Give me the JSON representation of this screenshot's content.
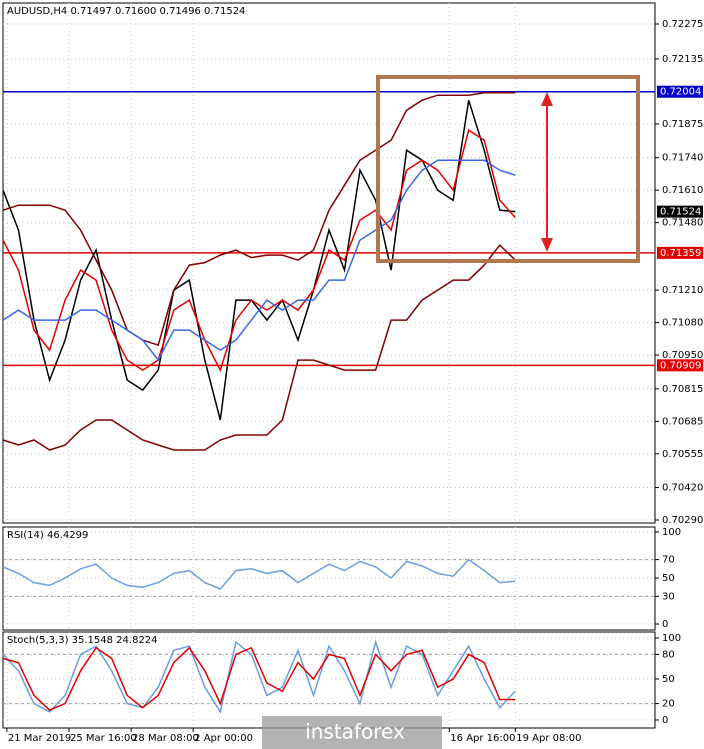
{
  "chart_data": [
    {
      "type": "line",
      "title": "AUDUSD,H4  0.71497 0.71600 0.71496 0.71524",
      "x": [
        0,
        4,
        8,
        12,
        16,
        20,
        24,
        28,
        32,
        36,
        40,
        44,
        48,
        52,
        56,
        60,
        64,
        68,
        72,
        76,
        80,
        84,
        88,
        92,
        96,
        100,
        104,
        108,
        112,
        116,
        120,
        124,
        128,
        132
      ],
      "xlim": [
        0,
        168
      ],
      "xticks": [
        1,
        17,
        33,
        49,
        115,
        132
      ],
      "ylim": [
        0.70278,
        0.72359
      ],
      "yticks": [
        0.72275,
        0.72135,
        0.71875,
        {
          "value": 0.7174,
          "label": "0.71740"
        },
        {
          "value": 0.7161,
          "label": "0.71610"
        },
        {
          "value": 0.7148,
          "label": "0.71480"
        },
        {
          "value": 0.7121,
          "label": "0.71210"
        },
        {
          "value": 0.7108,
          "label": "0.71080"
        },
        {
          "value": 0.7095,
          "label": "0.70950"
        },
        0.70815,
        0.70685,
        0.70555,
        {
          "value": 0.7042,
          "label": "0.70420"
        },
        {
          "value": 0.7029,
          "label": "0.70290"
        }
      ],
      "grid": true,
      "levels": [
        {
          "value": 0.72004,
          "color": "#0000c8"
        },
        {
          "value": 0.71359,
          "color": "#e00000"
        },
        {
          "value": 0.70909,
          "color": "#e00000"
        }
      ],
      "last_price": 0.71524,
      "series": [
        {
          "color": "#000000",
          "values": [
            0.7161,
            0.7145,
            0.7109,
            0.7085,
            0.7101,
            0.7125,
            0.7137,
            0.7109,
            0.7085,
            0.7081,
            0.7089,
            0.7121,
            0.7125,
            0.7093,
            0.7069,
            0.7117,
            0.7117,
            0.7109,
            0.7117,
            0.7101,
            0.7121,
            0.7145,
            0.7129,
            0.7169,
            0.7157,
            0.7129,
            0.7177,
            0.7173,
            0.7161,
            0.7157,
            0.7197,
            0.7177,
            0.7153,
            0.71524
          ]
        },
        {
          "color": "#800000",
          "values": [
            0.7153,
            0.7155,
            0.7155,
            0.7155,
            0.7153,
            0.7145,
            0.7133,
            0.7121,
            0.7105,
            0.7101,
            0.7099,
            0.7121,
            0.7131,
            0.7132,
            0.7135,
            0.7137,
            0.7134,
            0.7135,
            0.7135,
            0.7133,
            0.7137,
            0.7153,
            0.7163,
            0.7173,
            0.7177,
            0.7181,
            0.7193,
            0.7197,
            0.7199,
            0.7199,
            0.7199,
            0.72,
            0.72,
            0.72
          ]
        },
        {
          "color": "#800000",
          "values": [
            0.7061,
            0.7059,
            0.7061,
            0.7057,
            0.7059,
            0.7065,
            0.7069,
            0.7069,
            0.7065,
            0.7061,
            0.7059,
            0.7057,
            0.7057,
            0.7057,
            0.7061,
            0.7063,
            0.7063,
            0.7063,
            0.7069,
            0.7093,
            0.7093,
            0.7091,
            0.7089,
            0.7089,
            0.7089,
            0.7109,
            0.7109,
            0.7117,
            0.7121,
            0.7125,
            0.7125,
            0.7131,
            0.7139,
            0.7133
          ]
        },
        {
          "color": "#e00000",
          "values": [
            0.7141,
            0.7129,
            0.7105,
            0.7097,
            0.7117,
            0.7129,
            0.7125,
            0.7105,
            0.7093,
            0.7089,
            0.7093,
            0.7113,
            0.7117,
            0.7101,
            0.7089,
            0.7109,
            0.7117,
            0.7113,
            0.7117,
            0.7113,
            0.7121,
            0.7137,
            0.7133,
            0.7149,
            0.7153,
            0.7145,
            0.7169,
            0.7173,
            0.7169,
            0.7161,
            0.7185,
            0.7181,
            0.7157,
            0.715
          ]
        },
        {
          "color": "#3a66e0",
          "values": [
            0.7109,
            0.7113,
            0.7109,
            0.7109,
            0.7109,
            0.7113,
            0.7113,
            0.7109,
            0.7105,
            0.7101,
            0.7093,
            0.7105,
            0.7105,
            0.7101,
            0.7097,
            0.7101,
            0.7109,
            0.7117,
            0.7113,
            0.7117,
            0.7117,
            0.7125,
            0.7125,
            0.7141,
            0.7145,
            0.7149,
            0.7161,
            0.7169,
            0.7173,
            0.7173,
            0.7173,
            0.7173,
            0.7169,
            0.7167
          ]
        }
      ]
    },
    {
      "type": "line",
      "title": "RSI(14) 46.4299",
      "x": [
        0,
        4,
        8,
        12,
        16,
        20,
        24,
        28,
        32,
        36,
        40,
        44,
        48,
        52,
        56,
        60,
        64,
        68,
        72,
        76,
        80,
        84,
        88,
        92,
        96,
        100,
        104,
        108,
        112,
        116,
        120,
        124,
        128,
        132
      ],
      "xlim": [
        0,
        168
      ],
      "xticks": [
        1,
        17,
        33,
        49,
        115,
        132
      ],
      "ylim": [
        -6.5,
        105.4
      ],
      "yticks": [
        100,
        70,
        50,
        30,
        0
      ],
      "grid": true,
      "levels": [
        70,
        30
      ],
      "series": [
        {
          "color": "#6a9ee0",
          "values": [
            62,
            55,
            45,
            42,
            50,
            60,
            65,
            50,
            42,
            40,
            45,
            55,
            58,
            45,
            38,
            58,
            60,
            55,
            58,
            45,
            55,
            65,
            58,
            68,
            62,
            50,
            68,
            63,
            55,
            52,
            70,
            58,
            45,
            46.4299
          ]
        }
      ]
    },
    {
      "type": "line",
      "title": "Stoch(5,3,3) 35.1548 24.8224",
      "x": [
        0,
        4,
        8,
        12,
        16,
        20,
        24,
        28,
        32,
        36,
        40,
        44,
        48,
        52,
        56,
        60,
        64,
        68,
        72,
        76,
        80,
        84,
        88,
        92,
        96,
        100,
        104,
        108,
        112,
        116,
        120,
        124,
        128,
        132
      ],
      "xlim": [
        0,
        168
      ],
      "xticks": [
        {
          "value": 1,
          "label": "21 Mar 2019"
        },
        {
          "value": 17,
          "label": "25 Mar 16:00"
        },
        {
          "value": 33,
          "label": "28 Mar 08:00"
        },
        {
          "value": 49,
          "label": "2 Apr 00:00"
        },
        {
          "value": 115,
          "label": "16 Apr 16:00"
        },
        {
          "value": 132,
          "label": "19 Apr 08:00"
        }
      ],
      "ylim": [
        -9.8,
        107.3
      ],
      "yticks": [
        100,
        80,
        50,
        20,
        0
      ],
      "grid": true,
      "levels": [
        80,
        20
      ],
      "series": [
        {
          "color": "#6a9ee0",
          "values": [
            80,
            60,
            20,
            10,
            30,
            80,
            90,
            60,
            20,
            15,
            40,
            85,
            90,
            40,
            10,
            95,
            80,
            30,
            40,
            85,
            30,
            90,
            60,
            20,
            95,
            40,
            90,
            80,
            30,
            60,
            90,
            50,
            15,
            35.1548
          ]
        },
        {
          "color": "#e00000",
          "values": [
            75,
            70,
            30,
            12,
            20,
            60,
            88,
            75,
            30,
            15,
            30,
            70,
            88,
            60,
            20,
            80,
            88,
            45,
            35,
            70,
            50,
            80,
            75,
            30,
            80,
            60,
            80,
            85,
            40,
            50,
            80,
            70,
            25,
            24.8224
          ]
        }
      ]
    }
  ],
  "watermark": "instaforex"
}
